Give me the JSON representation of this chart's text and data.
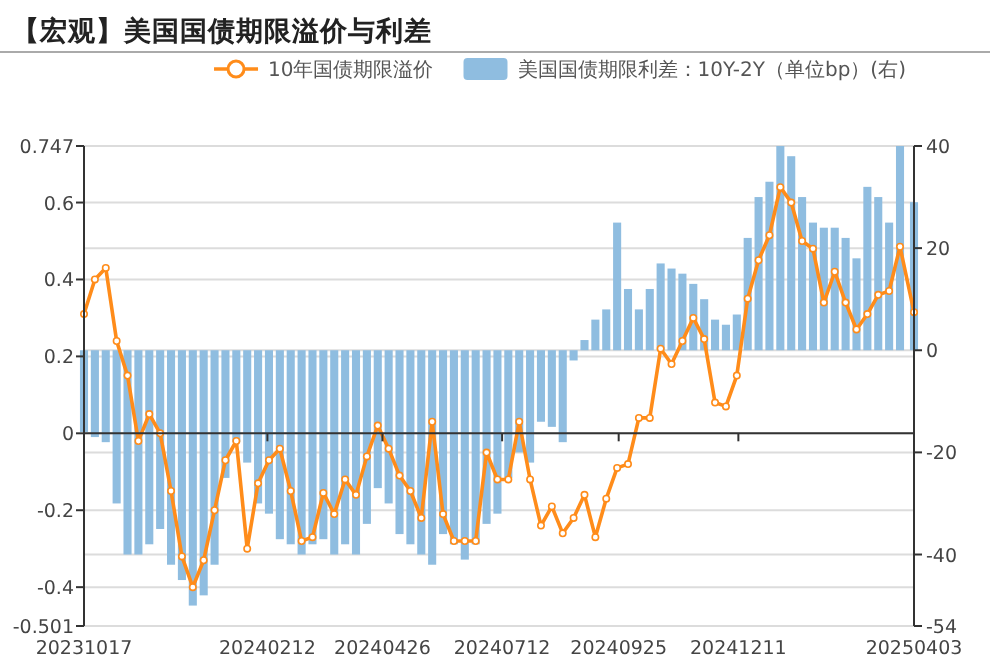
{
  "chart_data": {
    "type": "line",
    "title": "【宏观】美国国债期限溢价与利差",
    "x": [
      "2023-10-17",
      "2023-10-24",
      "2023-10-31",
      "2023-11-07",
      "2023-11-14",
      "2023-11-21",
      "2023-11-28",
      "2023-12-05",
      "2023-12-12",
      "2023-12-19",
      "2023-12-26",
      "2024-01-02",
      "2024-01-09",
      "2024-01-16",
      "2024-01-23",
      "2024-01-30",
      "2024-02-06",
      "2024-02-13",
      "2024-02-20",
      "2024-02-27",
      "2024-03-05",
      "2024-03-12",
      "2024-03-19",
      "2024-03-26",
      "2024-04-02",
      "2024-04-09",
      "2024-04-16",
      "2024-04-23",
      "2024-04-30",
      "2024-05-07",
      "2024-05-14",
      "2024-05-21",
      "2024-05-28",
      "2024-06-04",
      "2024-06-11",
      "2024-06-18",
      "2024-06-25",
      "2024-07-02",
      "2024-07-09",
      "2024-07-16",
      "2024-07-23",
      "2024-07-30",
      "2024-08-06",
      "2024-08-13",
      "2024-08-20",
      "2024-08-27",
      "2024-09-03",
      "2024-09-10",
      "2024-09-17",
      "2024-09-24",
      "2024-10-01",
      "2024-10-08",
      "2024-10-15",
      "2024-10-22",
      "2024-10-29",
      "2024-11-05",
      "2024-11-12",
      "2024-11-19",
      "2024-11-26",
      "2024-12-03",
      "2024-12-10",
      "2024-12-17",
      "2024-12-24",
      "2024-12-31",
      "2025-01-07",
      "2025-01-14",
      "2025-01-21",
      "2025-01-28",
      "2025-02-04",
      "2025-02-11",
      "2025-02-18",
      "2025-02-25",
      "2025-03-04",
      "2025-03-11",
      "2025-03-18",
      "2025-03-25",
      "2025-04-03"
    ],
    "series": [
      {
        "name": "10年国债期限溢价",
        "color": "#ff8c1a",
        "values": [
          0.31,
          0.4,
          0.43,
          0.24,
          0.15,
          -0.02,
          0.05,
          0.0,
          -0.15,
          -0.32,
          -0.4,
          -0.33,
          -0.2,
          -0.07,
          -0.02,
          -0.3,
          -0.13,
          -0.07,
          -0.04,
          -0.15,
          -0.28,
          -0.27,
          -0.155,
          -0.21,
          -0.12,
          -0.16,
          -0.06,
          0.02,
          -0.04,
          -0.11,
          -0.15,
          -0.22,
          0.03,
          -0.21,
          -0.28,
          -0.28,
          -0.28,
          -0.05,
          -0.12,
          -0.12,
          0.03,
          -0.12,
          -0.24,
          -0.19,
          -0.26,
          -0.22,
          -0.16,
          -0.27,
          -0.17,
          -0.09,
          -0.08,
          0.04,
          0.04,
          0.22,
          0.18,
          0.24,
          0.3,
          0.245,
          0.08,
          0.07,
          0.15,
          0.35,
          0.45,
          0.515,
          0.64,
          0.6,
          0.5,
          0.48,
          0.34,
          0.42,
          0.34,
          0.27,
          0.31,
          0.36,
          0.37,
          0.485,
          0.315
        ]
      },
      {
        "name": "美国国债期限利差：10Y-2Y（单位bp）(右)",
        "type": "bar",
        "axis": "y2",
        "color": "#8fbde0",
        "values": [
          -16,
          -17,
          -18,
          -30,
          -40,
          -40,
          -38,
          -35,
          -42,
          -45,
          -50,
          -48,
          -42,
          -25,
          -18,
          -22,
          -30,
          -32,
          -37,
          -38,
          -40,
          -38,
          -37,
          -40,
          -38,
          -40,
          -34,
          -27,
          -30,
          -36,
          -38,
          -40,
          -42,
          -36,
          -38,
          -41,
          -38,
          -34,
          -32,
          -25,
          -20,
          -22,
          -14,
          -15,
          -18,
          -2,
          2,
          6,
          8,
          25,
          12,
          8,
          12,
          17,
          16,
          15,
          13,
          10,
          6,
          5,
          7,
          22,
          30,
          33,
          40,
          38,
          30,
          25,
          24,
          24,
          22,
          18,
          32,
          30,
          25,
          40,
          29
        ]
      }
    ],
    "xlim": [
      "2023-10-17",
      "2025-04-03"
    ],
    "xticks": [
      {
        "value": "2023-10-17",
        "label": "20231017"
      },
      {
        "value": "2024-02-12",
        "label": "20240212"
      },
      {
        "value": "2024-04-26",
        "label": "20240426"
      },
      {
        "value": "2024-07-12",
        "label": "20240712"
      },
      {
        "value": "2024-09-25",
        "label": "20240925"
      },
      {
        "value": "2024-12-11",
        "label": "20241211"
      },
      {
        "value": "2025-04-03",
        "label": "20250403"
      }
    ],
    "ylim": [
      -0.501,
      0.747
    ],
    "yticks": [
      -0.501,
      -0.4,
      -0.2,
      0,
      0.2,
      0.4,
      0.6,
      0.747
    ],
    "y2lim": [
      -54,
      40
    ],
    "y2ticks": [
      -54,
      -40,
      -20,
      0,
      20,
      40
    ],
    "grid": "y",
    "legend": "top",
    "marker": "circle"
  }
}
